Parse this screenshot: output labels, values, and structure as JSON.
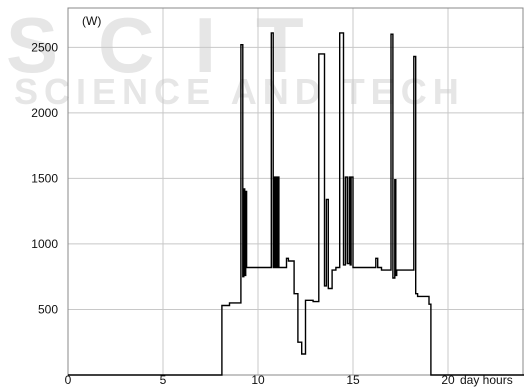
{
  "watermark": {
    "line1": "SCIT",
    "line2": "SCIENCE AND TECH",
    "color": "#e6e6e6"
  },
  "chart_data": {
    "type": "line",
    "title": "",
    "ylabel": "(W)",
    "xlabel": "day hours",
    "xlim": [
      0,
      24
    ],
    "ylim": [
      0,
      2800
    ],
    "xticks": [
      0,
      5,
      10,
      15,
      20
    ],
    "yticks": [
      500,
      1000,
      1500,
      2000,
      2500
    ],
    "grid": true,
    "line_color": "#000000",
    "grid_color": "#c8c8c8",
    "series": [
      {
        "x": [
          0,
          8.1,
          8.1,
          8.5,
          8.5,
          9.1,
          9.1,
          9.2,
          9.2,
          9.25,
          9.25,
          9.3,
          9.3,
          9.35,
          9.35,
          9.4,
          9.4,
          9.5,
          9.5,
          10.7,
          10.7,
          10.8,
          10.8,
          10.85,
          10.85,
          10.9,
          10.9,
          10.95,
          10.95,
          11.0,
          11.0,
          11.05,
          11.05,
          11.1,
          11.1,
          11.5,
          11.5,
          11.6,
          11.6,
          11.9,
          11.9,
          12.1,
          12.1,
          12.3,
          12.3,
          12.5,
          12.5,
          12.9,
          12.9,
          13.2,
          13.2,
          13.5,
          13.5,
          13.6,
          13.6,
          13.7,
          13.7,
          13.9,
          13.9,
          14.1,
          14.1,
          14.3,
          14.3,
          14.5,
          14.5,
          14.6,
          14.6,
          14.7,
          14.7,
          14.8,
          14.8,
          14.85,
          14.85,
          14.9,
          14.9,
          15.0,
          15.0,
          15.1,
          15.1,
          15.2,
          15.2,
          15.3,
          15.3,
          16.2,
          16.2,
          16.3,
          16.3,
          16.5,
          16.5,
          17.0,
          17.0,
          17.1,
          17.1,
          17.2,
          17.2,
          17.25,
          17.25,
          17.3,
          17.3,
          17.4,
          17.4,
          18.2,
          18.2,
          18.3,
          18.3,
          18.4,
          18.4,
          19.0,
          19.0,
          19.1,
          19.1,
          24
        ],
        "y": [
          0,
          0,
          530,
          530,
          550,
          550,
          2520,
          2520,
          750,
          750,
          1420,
          1420,
          760,
          760,
          1400,
          1400,
          820,
          820,
          820,
          820,
          2610,
          2610,
          820,
          820,
          1510,
          1510,
          820,
          820,
          1510,
          1510,
          820,
          820,
          1510,
          1510,
          820,
          820,
          890,
          890,
          870,
          870,
          620,
          620,
          250,
          250,
          160,
          160,
          570,
          570,
          560,
          560,
          2450,
          2450,
          680,
          680,
          1340,
          1340,
          660,
          660,
          800,
          800,
          820,
          820,
          2610,
          2610,
          840,
          840,
          1510,
          1510,
          850,
          850,
          1510,
          1510,
          840,
          840,
          1510,
          1510,
          820,
          820,
          820,
          820,
          820,
          820,
          820,
          820,
          890,
          890,
          820,
          820,
          800,
          800,
          2600,
          2600,
          740,
          740,
          1490,
          1490,
          760,
          760,
          800,
          800,
          800,
          800,
          2430,
          2430,
          620,
          620,
          600,
          600,
          540,
          540,
          0,
          0
        ]
      }
    ]
  }
}
